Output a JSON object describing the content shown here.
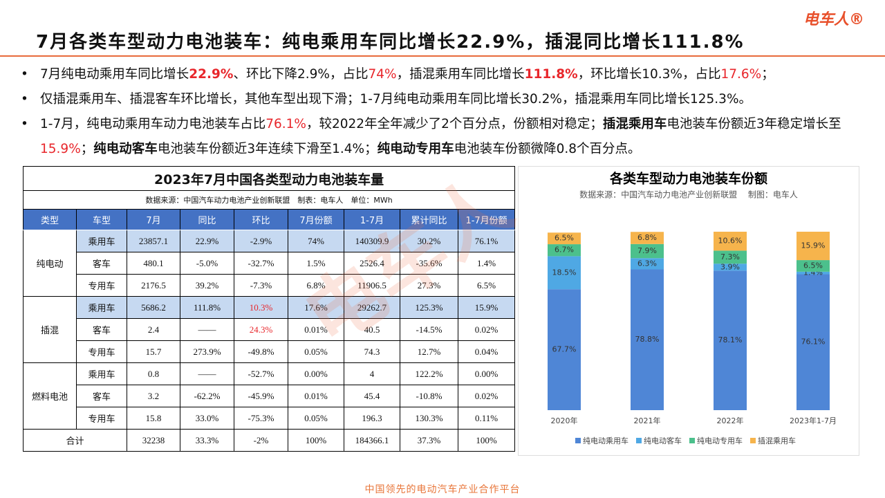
{
  "header": {
    "title": "7月各类车型动力电池装车：纯电乘用车同比增长22.9%，插混同比增长111.8%",
    "logo": "电车人®"
  },
  "bullets": [
    [
      {
        "text": "7月纯电动乘用车同比增长"
      },
      {
        "text": "22.9%",
        "color": "#e8262b",
        "bold": true
      },
      {
        "text": "、环比下降2.9%，占比"
      },
      {
        "text": "74%",
        "color": "#e8262b"
      },
      {
        "text": "，插混乘用车同比增长"
      },
      {
        "text": "111.8%",
        "color": "#e8262b",
        "bold": true
      },
      {
        "text": "，环比增长10.3%，占比"
      },
      {
        "text": "17.6%",
        "color": "#e8262b"
      },
      {
        "text": "；"
      }
    ],
    [
      {
        "text": "仅插混乘用车、插混客车环比增长，其他车型出现下滑；1-7月纯电动乘用车同比增长30.2%，插混乘用车同比增长125.3%。"
      }
    ],
    [
      {
        "text": "1-7月，纯电动乘用车动力电池装车占比"
      },
      {
        "text": "76.1%",
        "color": "#e8262b"
      },
      {
        "text": "，较2022年全年减少了2个百分点，份额相对稳定；"
      },
      {
        "text": "插混乘用车",
        "bold": true
      },
      {
        "text": "电池装车份额近3年稳定增长至"
      },
      {
        "text": "15.9%",
        "color": "#e8262b"
      },
      {
        "text": "；"
      },
      {
        "text": "纯电动客车",
        "bold": true
      },
      {
        "text": "电池装车份额近3年连续下滑至1.4%；"
      },
      {
        "text": "纯电动专用车",
        "bold": true
      },
      {
        "text": "电池装车份额微降0.8个百分点。"
      }
    ]
  ],
  "table": {
    "title": "2023年7月中国各类型动力电池装车量",
    "source": "数据来源：中国汽车动力电池产业创新联盟　制表：电车人　单位：MWh",
    "headers": [
      "类型",
      "车型",
      "7月",
      "同比",
      "环比",
      "7月份额",
      "1-7月",
      "累计同比",
      "1-7月份额"
    ],
    "groups": [
      {
        "name": "纯电动",
        "rows": [
          [
            "乘用车",
            "23857.1",
            "22.9%",
            "-2.9%",
            "74%",
            "140309.9",
            "30.2%",
            "76.1%"
          ],
          [
            "客车",
            "480.1",
            "-5.0%",
            "-32.7%",
            "1.5%",
            "2526.4",
            "-35.6%",
            "1.4%"
          ],
          [
            "专用车",
            "2176.5",
            "39.2%",
            "-7.3%",
            "6.8%",
            "11906.5",
            "27.3%",
            "6.5%"
          ]
        ]
      },
      {
        "name": "插混",
        "rows": [
          [
            "乘用车",
            "5686.2",
            "111.8%",
            {
              "text": "10.3%",
              "color": "#e8262b"
            },
            "17.6%",
            "29262.7",
            "125.3%",
            "15.9%"
          ],
          [
            "客车",
            "2.4",
            "——",
            {
              "text": "24.3%",
              "color": "#e8262b"
            },
            "0.01%",
            "40.5",
            "-14.5%",
            "0.02%"
          ],
          [
            "专用车",
            "15.7",
            "273.9%",
            "-49.8%",
            "0.05%",
            "74.3",
            "12.7%",
            "0.04%"
          ]
        ]
      },
      {
        "name": "燃料电池",
        "rows": [
          [
            "乘用车",
            "0.8",
            "——",
            "-52.7%",
            "0.00%",
            "4",
            "122.2%",
            "0.00%"
          ],
          [
            "客车",
            "3.2",
            "-62.2%",
            "-45.9%",
            "0.01%",
            "45.4",
            "-10.8%",
            "0.02%"
          ],
          [
            "专用车",
            "15.8",
            "33.0%",
            "-75.3%",
            "0.05%",
            "196.3",
            "130.3%",
            "0.11%"
          ]
        ]
      }
    ],
    "total": [
      "合计",
      "32238",
      "33.3%",
      "-2%",
      "100%",
      "184366.1",
      "37.3%",
      "100%"
    ]
  },
  "chart_data": {
    "type": "stacked_bar",
    "title": "各类车型动力电池装车份额",
    "subtitle": "数据来源：中国汽车动力电池产业创新联盟　 制图：电车人",
    "categories": [
      "2020年",
      "2021年",
      "2022年",
      "2023年1-7月"
    ],
    "series": [
      {
        "name": "纯电动乘用车",
        "color": "#4f86d6",
        "values": [
          67.7,
          78.8,
          78.1,
          76.1
        ],
        "value_labels": [
          "67.7%",
          "78.8%",
          "78.1%",
          "76.1%"
        ]
      },
      {
        "name": "纯电动客车",
        "color": "#4fa8e4",
        "values": [
          18.5,
          6.3,
          3.9,
          1.4
        ],
        "value_labels": [
          "18.5%",
          "6.3%",
          "3.9%",
          "1.4%"
        ]
      },
      {
        "name": "纯电动专用车",
        "color": "#4cc08c",
        "values": [
          6.7,
          7.9,
          7.3,
          6.5
        ],
        "value_labels": [
          "6.7%",
          "7.9%",
          "7.3%",
          "6.5%"
        ]
      },
      {
        "name": "插混乘用车",
        "color": "#f6b44c",
        "values": [
          6.5,
          6.8,
          10.6,
          15.9
        ],
        "value_labels": [
          "6.5%",
          "6.8%",
          "10.6%",
          "15.9%"
        ]
      }
    ]
  },
  "watermark": "电车人",
  "footer": "中国领先的电动汽车产业合作平台"
}
